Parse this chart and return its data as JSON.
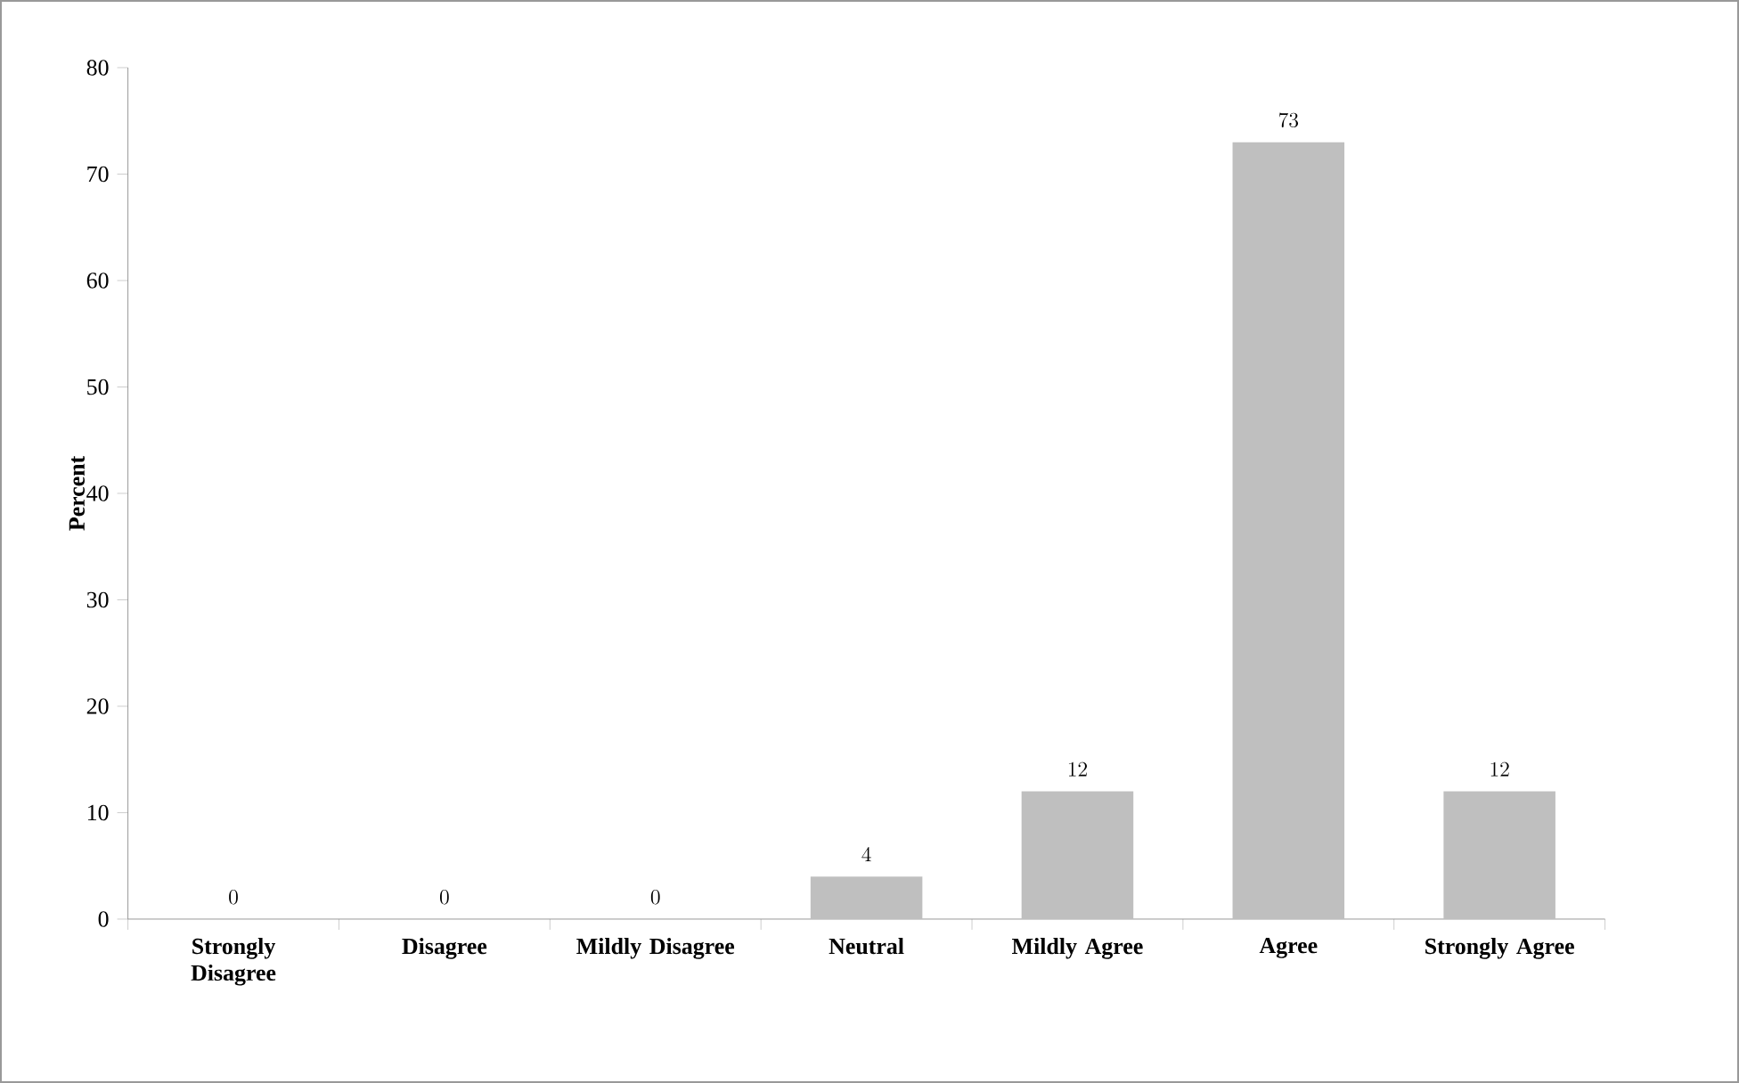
{
  "chart_data": {
    "type": "bar",
    "ylabel": "Percent",
    "categories": [
      "Strongly Disagree",
      "Disagree",
      "Mildly Disagree",
      "Neutral",
      "Mildly Agree",
      "Agree",
      "Strongly Agree"
    ],
    "values": [
      0,
      0,
      0,
      4,
      12,
      73,
      12
    ],
    "color": "#bfbfbf",
    "ylim": [
      0,
      80
    ],
    "yticks": [
      0,
      10,
      20,
      30,
      40,
      50,
      60,
      70,
      80
    ],
    "data_labels": true
  }
}
